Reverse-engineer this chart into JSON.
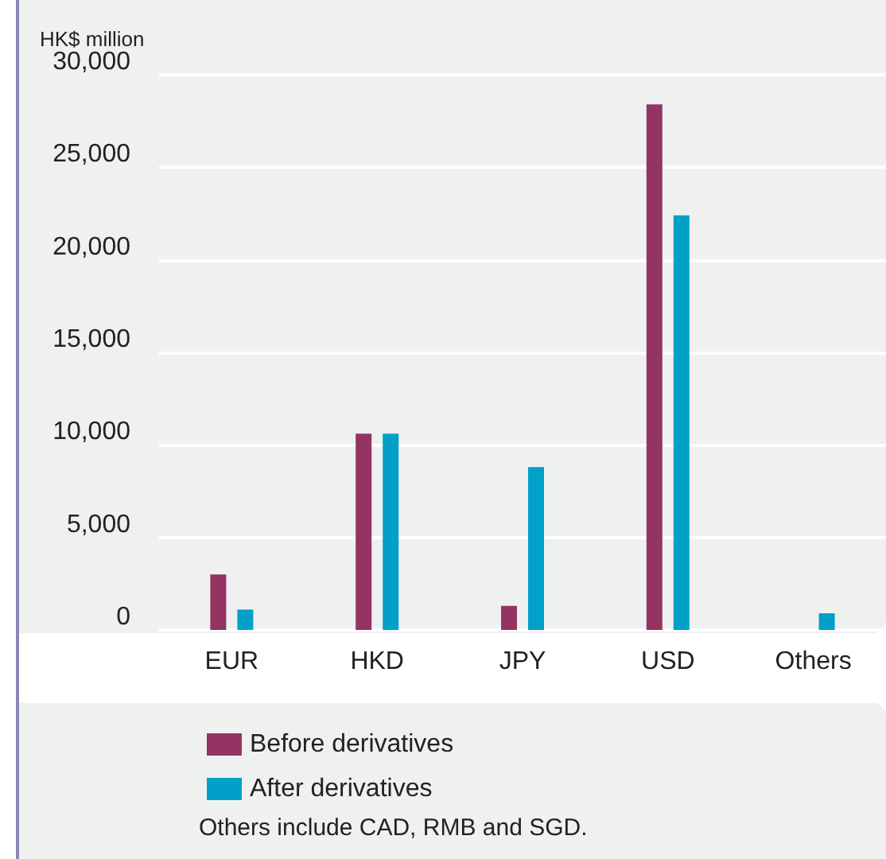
{
  "chart_data": {
    "type": "bar",
    "ylabel": "HK$ million",
    "categories": [
      "EUR",
      "HKD",
      "JPY",
      "USD",
      "Others"
    ],
    "series": [
      {
        "name": "Before derivatives",
        "color": "#943463",
        "values": [
          3000,
          10600,
          1300,
          28400,
          null
        ]
      },
      {
        "name": "After derivatives",
        "color": "#00a0c8",
        "values": [
          1100,
          10600,
          8800,
          22400,
          900
        ]
      }
    ],
    "ylim": [
      0,
      30000
    ],
    "yticks": [
      0,
      {
        "value": 5000,
        "label": "5,000"
      },
      {
        "value": 10000,
        "label": "10,000"
      },
      {
        "value": 15000,
        "label": "15,000"
      },
      {
        "value": 20000,
        "label": "20,000"
      },
      {
        "value": 25000,
        "label": "25,000"
      },
      {
        "value": 30000,
        "label": "30,000"
      }
    ],
    "grid": "y",
    "legend": "bottom",
    "annotations": [
      "Others include CAD, RMB and SGD."
    ]
  }
}
